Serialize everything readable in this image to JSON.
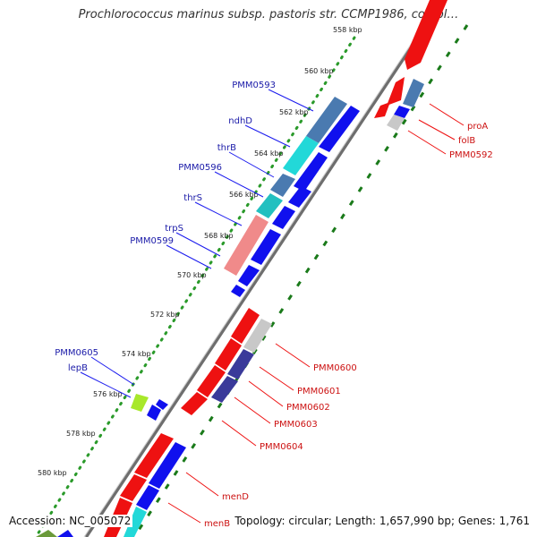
{
  "title": "Prochlorococcus marinus subsp. pastoris str. CCMP1986, compl…",
  "footer": {
    "accession": "Accession: NC_005072",
    "summary": "Topology: circular; Length: 1,657,990 bp; Genes: 1,761"
  },
  "scale_labels": [
    {
      "text": "558 kbp",
      "pos": 558
    },
    {
      "text": "560 kbp",
      "pos": 560
    },
    {
      "text": "562 kbp",
      "pos": 562
    },
    {
      "text": "564 kbp",
      "pos": 564
    },
    {
      "text": "566 kbp",
      "pos": 566
    },
    {
      "text": "568 kbp",
      "pos": 568
    },
    {
      "text": "570 kbp",
      "pos": 570
    },
    {
      "text": "572 kbp",
      "pos": 572
    },
    {
      "text": "574 kbp",
      "pos": 574
    },
    {
      "text": "576 kbp",
      "pos": 576
    },
    {
      "text": "578 kbp",
      "pos": 578
    },
    {
      "text": "580 kbp",
      "pos": 580
    }
  ],
  "gene_labels_left": [
    {
      "text": "PMM0593",
      "color": "#1a1aa8"
    },
    {
      "text": "ndhD",
      "color": "#1a1aa8"
    },
    {
      "text": "thrB",
      "color": "#1a1aa8"
    },
    {
      "text": "PMM0596",
      "color": "#1a1aa8"
    },
    {
      "text": "thrS",
      "color": "#1a1aa8"
    },
    {
      "text": "trpS",
      "color": "#1a1aa8"
    },
    {
      "text": "PMM0599",
      "color": "#1a1aa8"
    },
    {
      "text": "PMM0605",
      "color": "#1a1aa8"
    },
    {
      "text": "lepB",
      "color": "#1a1aa8"
    }
  ],
  "gene_labels_right": [
    {
      "text": "proA",
      "color": "#cc1111"
    },
    {
      "text": "folB",
      "color": "#cc1111"
    },
    {
      "text": "PMM0592",
      "color": "#cc1111"
    },
    {
      "text": "PMM0600",
      "color": "#cc1111"
    },
    {
      "text": "PMM0601",
      "color": "#cc1111"
    },
    {
      "text": "PMM0602",
      "color": "#cc1111"
    },
    {
      "text": "PMM0603",
      "color": "#cc1111"
    },
    {
      "text": "PMM0604",
      "color": "#cc1111"
    },
    {
      "text": "menD",
      "color": "#cc1111"
    },
    {
      "text": "menB",
      "color": "#cc1111"
    }
  ],
  "colors": {
    "backbone": "#7a7a7a",
    "forward_cds": "#1010ee",
    "reverse_cds": "#ee1111",
    "gc_dots": "#2a9a2a",
    "skew_dashes": "#1a7a1a"
  }
}
